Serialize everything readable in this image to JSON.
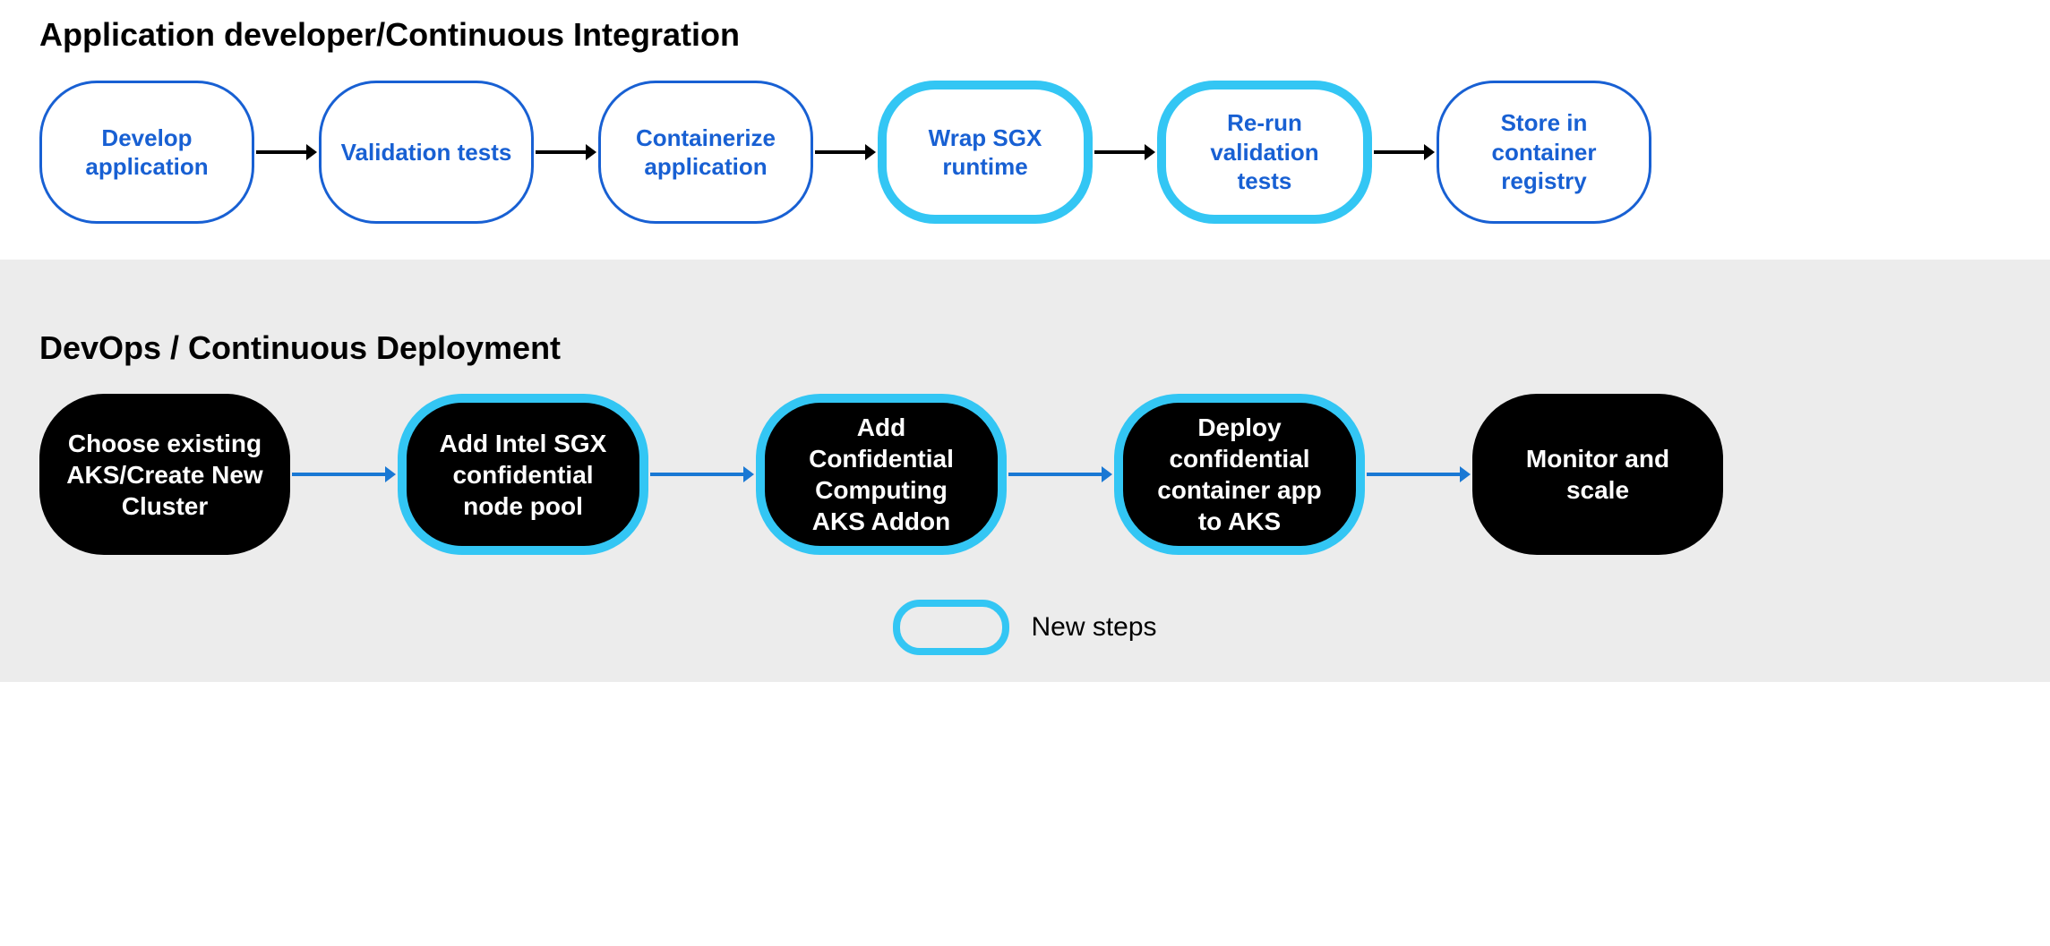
{
  "colors": {
    "page_bg": "#ffffff",
    "section2_bg": "#ececec",
    "title_color": "#000000",
    "ci_border": "#1860d3",
    "ci_text": "#1860d3",
    "ci_fill": "#ffffff",
    "highlight_border": "#33c6f4",
    "cd_fill": "#000000",
    "cd_text": "#ffffff",
    "arrow_black": "#000000",
    "arrow_blue": "#1978d4"
  },
  "node_shape": {
    "ci_width": 240,
    "ci_height": 160,
    "ci_radius": 64,
    "ci_border_width_normal": 3,
    "ci_border_width_highlight": 10,
    "ci_fontsize": 26,
    "cd_width": 280,
    "cd_height": 180,
    "cd_radius": 72,
    "cd_border_width_highlight": 10,
    "cd_fontsize": 28
  },
  "arrows": {
    "ci_length": 72,
    "ci_stroke": 4,
    "cd_length": 120,
    "cd_stroke": 4
  },
  "section_ci": {
    "title": "Application developer/Continuous Integration",
    "nodes": [
      {
        "label": "Develop application",
        "highlight": false
      },
      {
        "label": "Validation tests",
        "highlight": false
      },
      {
        "label": "Containerize application",
        "highlight": false
      },
      {
        "label": "Wrap SGX runtime",
        "highlight": true
      },
      {
        "label": "Re-run validation tests",
        "highlight": true
      },
      {
        "label": "Store in container registry",
        "highlight": false
      }
    ]
  },
  "section_cd": {
    "title": "DevOps / Continuous Deployment",
    "nodes": [
      {
        "label": "Choose existing AKS/Create New Cluster",
        "highlight": false
      },
      {
        "label": "Add Intel SGX confidential node pool",
        "highlight": true
      },
      {
        "label": "Add Confidential Computing AKS Addon",
        "highlight": true
      },
      {
        "label": "Deploy confidential container app to AKS",
        "highlight": true
      },
      {
        "label": "Monitor and scale",
        "highlight": false
      }
    ]
  },
  "legend": {
    "label": "New steps",
    "pill_width": 130,
    "pill_height": 62,
    "pill_radius": 30,
    "pill_border_width": 8
  }
}
